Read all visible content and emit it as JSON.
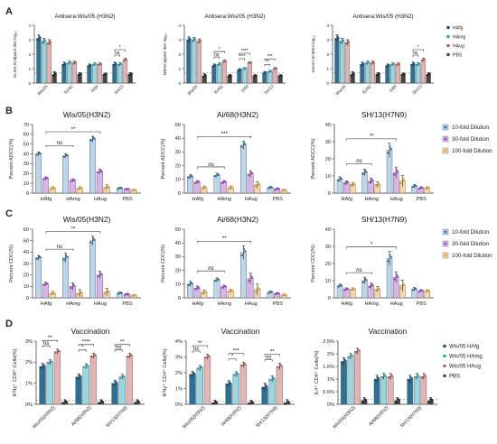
{
  "figure": {
    "panel_letters": [
      "A",
      "B",
      "C",
      "D"
    ]
  },
  "colors": {
    "hafg": "#2e6f95",
    "hamg": "#9ad6df",
    "haug": "#e2b5b5",
    "pbs": "#444444",
    "d10": "#bcd4ec",
    "d30": "#d9b4e8",
    "d100": "#f7d7a8",
    "dot10": "#2e6f95",
    "dot30": "#9b3fc4",
    "dot100": "#e5a040"
  },
  "legends": {
    "a": [
      "HAfg",
      "HAmg",
      "HAug",
      "PBS"
    ],
    "bc": [
      "10-fold Dilution",
      "30-fold Dilution",
      "100-fold Dilution"
    ],
    "d": [
      "Wis/05 HAfg",
      "Wis/05 HAmg",
      "Wis/05 HAug",
      "PBS"
    ]
  },
  "chart_data": [
    {
      "id": "A1",
      "type": "bar",
      "title": "Antisera:Wis/05 (H3N2)",
      "ylabel": "ELISA Endpoint titer log₁₀",
      "ylim": [
        0,
        4
      ],
      "yticks": [
        0,
        1,
        2,
        3,
        4
      ],
      "categories": [
        "Wis/05",
        "BJ/92",
        "A/68",
        "SH/13"
      ],
      "series": [
        {
          "name": "HAfg",
          "values": [
            3.1,
            1.3,
            1.2,
            1.3
          ]
        },
        {
          "name": "HAmg",
          "values": [
            2.9,
            1.4,
            1.3,
            1.3
          ]
        },
        {
          "name": "HAug",
          "values": [
            2.8,
            1.4,
            1.3,
            1.6
          ]
        },
        {
          "name": "PBS",
          "values": [
            0.6,
            0.6,
            0.6,
            0.6
          ]
        }
      ],
      "errors": [
        0.25,
        0.15,
        0.12,
        0.15
      ],
      "annotations": [
        {
          "group": 3,
          "from": 0,
          "to": 2,
          "label": "*"
        },
        {
          "group": 3,
          "from": 0,
          "to": 1,
          "label": "ns"
        }
      ]
    },
    {
      "id": "A2",
      "type": "bar",
      "title": "Antisera:Wis/05 (H3N2)",
      "ylabel": "MN Endpoint titer log₁₀",
      "ylim": [
        0,
        4
      ],
      "yticks": [
        0,
        1,
        2,
        3,
        4
      ],
      "categories": [
        "Wis/05",
        "BJ/92",
        "A/68",
        "SH/13"
      ],
      "series": [
        {
          "name": "HAfg",
          "values": [
            3.0,
            1.2,
            0.9,
            0.7
          ]
        },
        {
          "name": "HAmg",
          "values": [
            3.0,
            1.3,
            1.0,
            0.8
          ]
        },
        {
          "name": "HAug",
          "values": [
            2.9,
            1.5,
            1.4,
            1.0
          ]
        },
        {
          "name": "PBS",
          "values": [
            0.5,
            0.5,
            0.5,
            0.5
          ]
        }
      ],
      "errors": [
        0.2,
        0.12,
        0.1,
        0.1
      ],
      "annotations": [
        {
          "group": 1,
          "from": 0,
          "to": 2,
          "label": "*"
        },
        {
          "group": 1,
          "from": 0,
          "to": 1,
          "label": "ns"
        },
        {
          "group": 2,
          "from": 0,
          "to": 2,
          "label": "****"
        },
        {
          "group": 2,
          "from": 0,
          "to": 1,
          "label": "****"
        },
        {
          "group": 3,
          "from": 0,
          "to": 2,
          "label": "***"
        },
        {
          "group": 3,
          "from": 0,
          "to": 1,
          "label": "**"
        }
      ]
    },
    {
      "id": "A3",
      "type": "bar",
      "title": "Antisera:Wis/05 (H3N2)",
      "ylabel": "Serum HI titers log₁₀",
      "ylim": [
        0,
        4
      ],
      "yticks": [
        0,
        1,
        2,
        3,
        4
      ],
      "categories": [
        "Wis/05",
        "BJ/92",
        "A/68",
        "SH/13"
      ],
      "series": [
        {
          "name": "HAfg",
          "values": [
            3.1,
            1.3,
            1.2,
            1.3
          ]
        },
        {
          "name": "HAmg",
          "values": [
            2.9,
            1.4,
            1.3,
            1.3
          ]
        },
        {
          "name": "HAug",
          "values": [
            2.8,
            1.4,
            1.3,
            1.6
          ]
        },
        {
          "name": "PBS",
          "values": [
            0.6,
            0.6,
            0.6,
            0.6
          ]
        }
      ],
      "errors": [
        0.25,
        0.15,
        0.12,
        0.15
      ],
      "annotations": [
        {
          "group": 3,
          "from": 0,
          "to": 2,
          "label": "*"
        },
        {
          "group": 3,
          "from": 0,
          "to": 1,
          "label": "ns"
        }
      ]
    },
    {
      "id": "B1",
      "type": "bar",
      "title": "Wis/05(H3N2)",
      "ylabel": "Percent ADCC(%)",
      "ylim": [
        0,
        70
      ],
      "yticks": [
        0,
        10,
        20,
        30,
        40,
        50,
        60,
        70
      ],
      "categories": [
        "HAfg",
        "HAmg",
        "HAug",
        "PBS"
      ],
      "series": [
        {
          "name": "10-fold Dilution",
          "values": [
            40,
            38,
            55,
            5
          ]
        },
        {
          "name": "30-fold Dilution",
          "values": [
            15,
            13,
            22,
            4
          ]
        },
        {
          "name": "100-fold Dilution",
          "values": [
            5,
            5,
            6,
            3
          ]
        }
      ],
      "errors": [
        2,
        2,
        3,
        1
      ],
      "annotations": [
        {
          "from": 0,
          "to": 2,
          "label": "**"
        },
        {
          "from": 0,
          "to": 1,
          "label": "ns"
        }
      ]
    },
    {
      "id": "B2",
      "type": "bar",
      "title": "Ai/68(H3N2)",
      "ylabel": "Percent ADCC(%)",
      "ylim": [
        0,
        50
      ],
      "yticks": [
        0,
        10,
        20,
        30,
        40,
        50
      ],
      "categories": [
        "HAfg",
        "HAmg",
        "HAug",
        "PBS"
      ],
      "series": [
        {
          "name": "10-fold Dilution",
          "values": [
            12,
            13,
            35,
            4
          ]
        },
        {
          "name": "30-fold Dilution",
          "values": [
            8,
            8,
            14,
            3
          ]
        },
        {
          "name": "100-fold Dilution",
          "values": [
            4,
            4,
            6,
            2
          ]
        }
      ],
      "errors": [
        1.5,
        1.5,
        3,
        1
      ],
      "annotations": [
        {
          "from": 0,
          "to": 2,
          "label": "***"
        },
        {
          "from": 0,
          "to": 1,
          "label": "ns"
        }
      ]
    },
    {
      "id": "B3",
      "type": "bar",
      "title": "SH/13(H7N9)",
      "ylabel": "Percent ADCC(%)",
      "ylim": [
        0,
        40
      ],
      "yticks": [
        0,
        10,
        20,
        30,
        40
      ],
      "categories": [
        "HAfg",
        "HAmg",
        "HAug",
        "PBS"
      ],
      "series": [
        {
          "name": "10-fold Dilution",
          "values": [
            8,
            12,
            25,
            4
          ]
        },
        {
          "name": "30-fold Dilution",
          "values": [
            6,
            7,
            12,
            3
          ]
        },
        {
          "name": "100-fold Dilution",
          "values": [
            5,
            5,
            7,
            3
          ]
        }
      ],
      "errors": [
        1.5,
        2,
        4,
        1
      ],
      "annotations": [
        {
          "from": 0,
          "to": 2,
          "label": "**"
        },
        {
          "from": 0,
          "to": 1,
          "label": "ns"
        }
      ]
    },
    {
      "id": "C1",
      "type": "bar",
      "title": "Wis/05(H3N2)",
      "ylabel": "Percent CDC(%)",
      "ylim": [
        0,
        60
      ],
      "yticks": [
        0,
        10,
        20,
        30,
        40,
        50,
        60
      ],
      "categories": [
        "HAfg",
        "HAmg",
        "HAug",
        "PBS"
      ],
      "series": [
        {
          "name": "10-fold Dilution",
          "values": [
            35,
            35,
            50,
            4
          ]
        },
        {
          "name": "30-fold Dilution",
          "values": [
            12,
            10,
            20,
            3
          ]
        },
        {
          "name": "100-fold Dilution",
          "values": [
            4,
            4,
            5,
            2
          ]
        }
      ],
      "errors": [
        2,
        4,
        4,
        1
      ],
      "annotations": [
        {
          "from": 0,
          "to": 2,
          "label": "**"
        },
        {
          "from": 0,
          "to": 1,
          "label": "ns"
        }
      ]
    },
    {
      "id": "C2",
      "type": "bar",
      "title": "Ai/68(H3N2)",
      "ylabel": "Percent CDC(%)",
      "ylim": [
        0,
        50
      ],
      "yticks": [
        0,
        10,
        20,
        30,
        40,
        50
      ],
      "categories": [
        "HAfg",
        "HAmg",
        "HAug",
        "PBS"
      ],
      "series": [
        {
          "name": "10-fold Dilution",
          "values": [
            10,
            13,
            33,
            4
          ]
        },
        {
          "name": "30-fold Dilution",
          "values": [
            7,
            8,
            14,
            3
          ]
        },
        {
          "name": "100-fold Dilution",
          "values": [
            4,
            5,
            6,
            2
          ]
        }
      ],
      "errors": [
        2,
        1.5,
        5,
        1
      ],
      "annotations": [
        {
          "from": 0,
          "to": 2,
          "label": "**"
        },
        {
          "from": 0,
          "to": 1,
          "label": "ns"
        }
      ]
    },
    {
      "id": "C3",
      "type": "bar",
      "title": "SH/13(H7N9)",
      "ylabel": "Percent CDC(%)",
      "ylim": [
        0,
        40
      ],
      "yticks": [
        0,
        10,
        20,
        30,
        40
      ],
      "categories": [
        "HAfg",
        "HAmg",
        "HAug",
        "PBS"
      ],
      "series": [
        {
          "name": "10-fold Dilution",
          "values": [
            7,
            10,
            23,
            5
          ]
        },
        {
          "name": "30-fold Dilution",
          "values": [
            5,
            7,
            12,
            4
          ]
        },
        {
          "name": "100-fold Dilution",
          "values": [
            5,
            5,
            7,
            4
          ]
        }
      ],
      "errors": [
        1,
        2,
        4,
        1
      ],
      "annotations": [
        {
          "from": 0,
          "to": 2,
          "label": "*"
        },
        {
          "from": 0,
          "to": 1,
          "label": "ns"
        }
      ]
    },
    {
      "id": "D1",
      "type": "bar",
      "title": "Vaccination",
      "ylabel": "IFNγ⁺ CD8⁺ Cells(%)",
      "ylim": [
        0,
        3
      ],
      "yticks": [
        0,
        1,
        2,
        3
      ],
      "ytick_suffix": "%",
      "categories": [
        "Wis/05(H3N2)",
        "Ai/68(H3N2)",
        "SH/13(H7N9)"
      ],
      "series": [
        {
          "name": "Wis/05 HAfg",
          "values": [
            1.8,
            1.3,
            1.0
          ]
        },
        {
          "name": "Wis/05 HAmg",
          "values": [
            2.0,
            1.8,
            1.3
          ]
        },
        {
          "name": "Wis/05 HAug",
          "values": [
            2.5,
            2.3,
            2.3
          ]
        },
        {
          "name": "PBS",
          "values": [
            0.1,
            0.1,
            0.1
          ]
        }
      ],
      "errors": [
        0.15,
        0.15,
        0.15
      ],
      "annotations": [
        {
          "group": 0,
          "from": 0,
          "to": 2,
          "label": "**"
        },
        {
          "group": 0,
          "from": 0,
          "to": 1,
          "label": "ns"
        },
        {
          "group": 1,
          "from": 0,
          "to": 2,
          "label": "****"
        },
        {
          "group": 1,
          "from": 0,
          "to": 1,
          "label": "*"
        },
        {
          "group": 2,
          "from": 0,
          "to": 2,
          "label": "**"
        },
        {
          "group": 2,
          "from": 0,
          "to": 1,
          "label": "ns"
        }
      ]
    },
    {
      "id": "D2",
      "type": "bar",
      "title": "Vaccination",
      "ylabel": "IFNγ⁺ CD4⁺ Cells(%)",
      "ylim": [
        0,
        4
      ],
      "yticks": [
        0,
        1,
        2,
        3,
        4
      ],
      "ytick_suffix": "%",
      "categories": [
        "Wis/05(H3N2)",
        "Ai/68(H3N2)",
        "SH/13(H7N9)"
      ],
      "series": [
        {
          "name": "Wis/05 HAfg",
          "values": [
            1.9,
            1.3,
            1.1
          ]
        },
        {
          "name": "Wis/05 HAmg",
          "values": [
            2.3,
            1.9,
            1.6
          ]
        },
        {
          "name": "Wis/05 HAug",
          "values": [
            3.0,
            2.5,
            2.4
          ]
        },
        {
          "name": "PBS",
          "values": [
            0.1,
            0.1,
            0.1
          ]
        }
      ],
      "errors": [
        0.2,
        0.2,
        0.25
      ],
      "annotations": [
        {
          "group": 0,
          "from": 0,
          "to": 2,
          "label": "**"
        },
        {
          "group": 0,
          "from": 0,
          "to": 1,
          "label": "ns"
        },
        {
          "group": 1,
          "from": 0,
          "to": 2,
          "label": "***"
        },
        {
          "group": 1,
          "from": 0,
          "to": 1,
          "label": "*"
        },
        {
          "group": 2,
          "from": 0,
          "to": 2,
          "label": "**"
        },
        {
          "group": 2,
          "from": 0,
          "to": 1,
          "label": "ns"
        }
      ]
    },
    {
      "id": "D3",
      "type": "bar",
      "title": "Vaccination",
      "ylabel": "IL4⁺ CD4⁺ Cells(%)",
      "ylim": [
        0,
        2.5
      ],
      "yticks": [
        0,
        0.5,
        1,
        1.5,
        2,
        2.5
      ],
      "ytick_suffix": "%",
      "categories": [
        "Wis/05(H3N2)",
        "Ai/68(H3N2)",
        "SH/13(H7N9)"
      ],
      "series": [
        {
          "name": "Wis/05 HAfg",
          "values": [
            1.7,
            1.0,
            1.0
          ]
        },
        {
          "name": "Wis/05 HAmg",
          "values": [
            1.9,
            1.1,
            1.1
          ]
        },
        {
          "name": "Wis/05 HAug",
          "values": [
            2.1,
            1.1,
            1.1
          ]
        },
        {
          "name": "PBS",
          "values": [
            0.15,
            0.15,
            0.15
          ]
        }
      ],
      "errors": [
        0.15,
        0.15,
        0.15
      ],
      "annotations": []
    }
  ]
}
